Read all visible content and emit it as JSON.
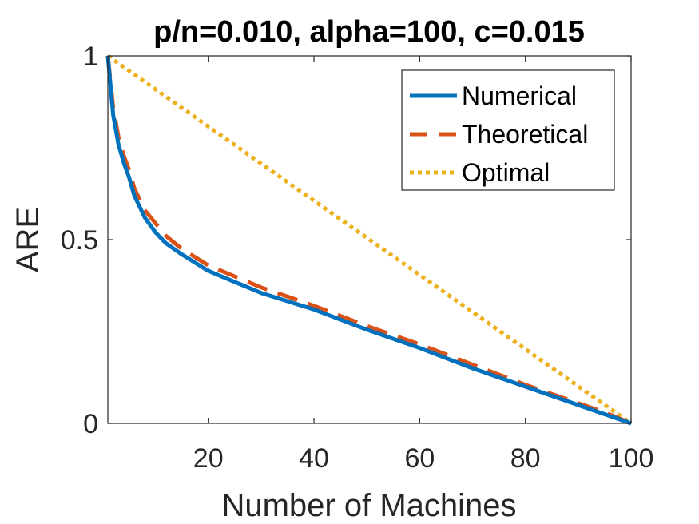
{
  "chart_data": {
    "type": "line",
    "title": "p/n=0.010, alpha=100, c=0.015",
    "xlabel": "Number of Machines",
    "ylabel": "ARE",
    "xlim": [
      1,
      100
    ],
    "ylim": [
      0,
      1
    ],
    "xticks": [
      20,
      40,
      60,
      80,
      100
    ],
    "yticks": [
      0,
      0.5,
      1
    ],
    "xtick_labels": [
      "20",
      "40",
      "60",
      "80",
      "100"
    ],
    "ytick_labels": [
      "0",
      "0.5",
      "1"
    ],
    "grid": false,
    "legend_position": "top-right",
    "series": [
      {
        "name": "Numerical",
        "color": "#0072BD",
        "style": "solid",
        "x": [
          1,
          2,
          3,
          4,
          5,
          6,
          8,
          10,
          12,
          15,
          20,
          25,
          30,
          40,
          50,
          60,
          70,
          80,
          90,
          95,
          100
        ],
        "y": [
          1.0,
          0.84,
          0.76,
          0.71,
          0.67,
          0.62,
          0.56,
          0.52,
          0.49,
          0.46,
          0.415,
          0.385,
          0.355,
          0.31,
          0.255,
          0.205,
          0.15,
          0.1,
          0.05,
          0.025,
          0.0
        ]
      },
      {
        "name": "Theoretical",
        "color": "#D95319",
        "style": "dashed",
        "x": [
          1,
          2,
          3,
          4,
          5,
          6,
          8,
          10,
          12,
          15,
          20,
          25,
          30,
          40,
          50,
          60,
          70,
          80,
          90,
          95,
          100
        ],
        "y": [
          1.0,
          0.86,
          0.78,
          0.73,
          0.69,
          0.64,
          0.58,
          0.545,
          0.51,
          0.475,
          0.43,
          0.4,
          0.37,
          0.32,
          0.265,
          0.215,
          0.16,
          0.105,
          0.055,
          0.03,
          0.0
        ]
      },
      {
        "name": "Optimal",
        "color": "#EDB120",
        "style": "dotted",
        "x": [
          1,
          100
        ],
        "y": [
          1.0,
          0.0
        ]
      }
    ]
  }
}
